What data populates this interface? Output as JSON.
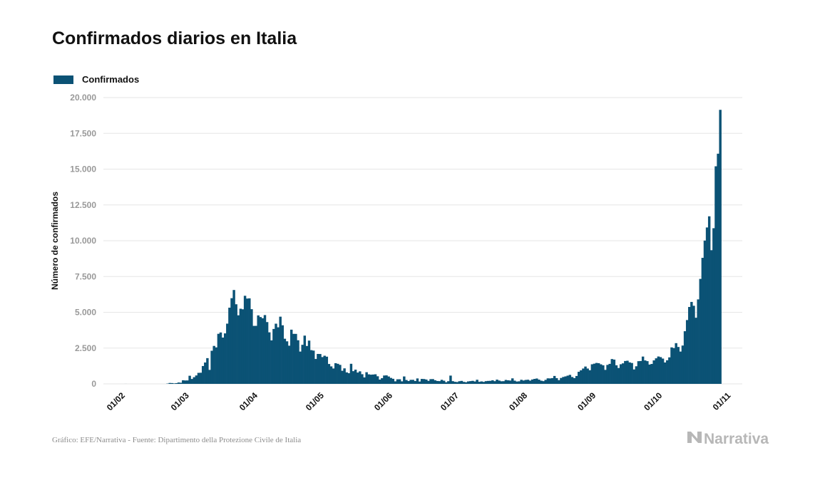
{
  "title": "Confirmados diarios en Italia",
  "legend": {
    "label": "Confirmados",
    "color": "#0b5275"
  },
  "footer": {
    "source": "Gráfico: EFE/Narrativa - Fuente: Dipartimento della Protezione Civile de Italia"
  },
  "logo": {
    "text": "Narrativa",
    "icon": "narrativa-n-logo-icon"
  },
  "colors": {
    "bar": "#0b5275",
    "grid": "#e6e6e6",
    "tick_text": "#999999",
    "axis_label": "#111111"
  },
  "chart_data": {
    "type": "bar",
    "title": "Confirmados diarios en Italia",
    "ylabel": "Número de confirmados",
    "xlabel": "",
    "ylim": [
      0,
      20000
    ],
    "yticks": [
      {
        "value": 0,
        "label": "0"
      },
      {
        "value": 2500,
        "label": "2.500"
      },
      {
        "value": 5000,
        "label": "5.000"
      },
      {
        "value": 7500,
        "label": "7.500"
      },
      {
        "value": 10000,
        "label": "10.000"
      },
      {
        "value": 12500,
        "label": "12.500"
      },
      {
        "value": 15000,
        "label": "15.000"
      },
      {
        "value": 17500,
        "label": "17.500"
      },
      {
        "value": 20000,
        "label": "20.000"
      }
    ],
    "xticks": [
      {
        "day": 0,
        "label": "01/02"
      },
      {
        "day": 29,
        "label": "01/03"
      },
      {
        "day": 60,
        "label": "01/04"
      },
      {
        "day": 90,
        "label": "01/05"
      },
      {
        "day": 121,
        "label": "01/06"
      },
      {
        "day": 151,
        "label": "01/07"
      },
      {
        "day": 182,
        "label": "01/08"
      },
      {
        "day": 213,
        "label": "01/09"
      },
      {
        "day": 243,
        "label": "01/10"
      },
      {
        "day": 274,
        "label": "01/11"
      }
    ],
    "x_start": "2020-02-01",
    "x_range_days": [
      -8,
      281
    ],
    "series": [
      {
        "name": "Confirmados",
        "start_day": 0,
        "values": [
          0,
          0,
          2,
          0,
          0,
          0,
          0,
          0,
          0,
          0,
          0,
          0,
          0,
          0,
          0,
          0,
          0,
          0,
          0,
          0,
          0,
          20,
          62,
          55,
          34,
          52,
          93,
          78,
          250,
          238,
          240,
          566,
          342,
          466,
          587,
          769,
          778,
          1247,
          1492,
          1797,
          977,
          2313,
          2651,
          2547,
          3497,
          3590,
          3233,
          3526,
          4207,
          5322,
          5986,
          6557,
          5560,
          4789,
          5249,
          5210,
          6153,
          5959,
          5974,
          5217,
          4050,
          4053,
          4782,
          4668,
          4585,
          4805,
          4316,
          3599,
          3039,
          3836,
          4204,
          3951,
          4694,
          4092,
          3153,
          2972,
          2667,
          3786,
          3493,
          3491,
          3047,
          2256,
          2729,
          3370,
          2646,
          3021,
          2357,
          2324,
          1739,
          2091,
          2086,
          1872,
          1965,
          1900,
          1389,
          1221,
          1075,
          1444,
          1401,
          1327,
          915,
          1083,
          802,
          744,
          1402,
          888,
          992,
          789,
          875,
          675,
          451,
          813,
          665,
          642,
          652,
          669,
          531,
          300,
          397,
          584,
          593,
          516,
          416,
          355,
          178,
          318,
          321,
          177,
          518,
          270,
          197,
          280,
          283,
          202,
          379,
          163,
          346,
          338,
          301,
          210,
          329,
          333,
          251,
          202,
          192,
          282,
          221,
          113,
          187,
          577,
          190,
          142,
          126,
          185,
          208,
          138,
          114,
          173,
          192,
          212,
          168,
          287,
          143,
          170,
          138,
          190,
          206,
          212,
          250,
          189,
          296,
          231,
          182,
          188,
          275,
          249,
          234,
          384,
          223,
          164,
          179,
          285,
          236,
          276,
          289,
          229,
          306,
          347,
          374,
          295,
          222,
          190,
          280,
          386,
          380,
          402,
          552,
          400,
          259,
          412,
          481,
          522,
          574,
          629,
          479,
          403,
          552,
          845,
          947,
          1071,
          1210,
          1071,
          953,
          1367,
          1411,
          1462,
          1444,
          1365,
          1297,
          978,
          1326,
          1397,
          1733,
          1695,
          1297,
          1108,
          1370,
          1434,
          1597,
          1616,
          1501,
          1458,
          1008,
          1229,
          1585,
          1597,
          1907,
          1638,
          1587,
          1350,
          1392,
          1640,
          1786,
          1912,
          1869,
          1766,
          1494,
          1648,
          1851,
          2548,
          2499,
          2844,
          2578,
          2257,
          2677,
          3678,
          4458,
          5372,
          5724,
          5456,
          4619,
          5901,
          7332,
          8804,
          10010,
          10925,
          11705,
          9338,
          10874,
          15199,
          16079,
          19143
        ]
      }
    ]
  }
}
